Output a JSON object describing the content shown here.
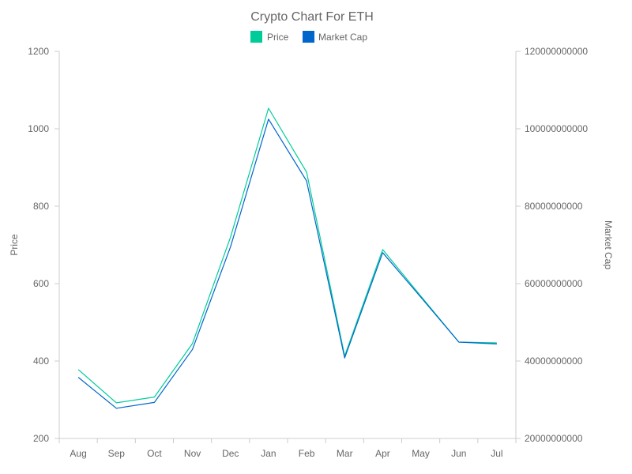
{
  "chart_data": {
    "type": "line",
    "title": "Crypto Chart For ETH",
    "categories": [
      "Aug",
      "Sep",
      "Oct",
      "Nov",
      "Dec",
      "Jan",
      "Feb",
      "Mar",
      "Apr",
      "May",
      "Jun",
      "Jul"
    ],
    "series": [
      {
        "name": "Price",
        "axis": "left",
        "color": "#00cc99",
        "values": [
          378,
          292,
          307,
          445,
          720,
          1053,
          888,
          413,
          688,
          568,
          449,
          447
        ]
      },
      {
        "name": "Market Cap",
        "axis": "right",
        "color": "#0066cc",
        "values": [
          35800000000,
          27800000000,
          29300000000,
          43000000000,
          69500000000,
          102500000000,
          86500000000,
          40800000000,
          68000000000,
          56500000000,
          44900000000,
          44400000000
        ]
      }
    ],
    "y_left": {
      "label": "Price",
      "range": [
        200,
        1200
      ],
      "ticks": [
        "200",
        "400",
        "600",
        "800",
        "1000",
        "1200"
      ]
    },
    "y_right": {
      "label": "Market Cap",
      "range": [
        20000000000,
        120000000000
      ],
      "ticks": [
        "20000000000",
        "40000000000",
        "60000000000",
        "80000000000",
        "100000000000",
        "120000000000"
      ]
    },
    "grid": false,
    "legend_position": "top-center"
  }
}
